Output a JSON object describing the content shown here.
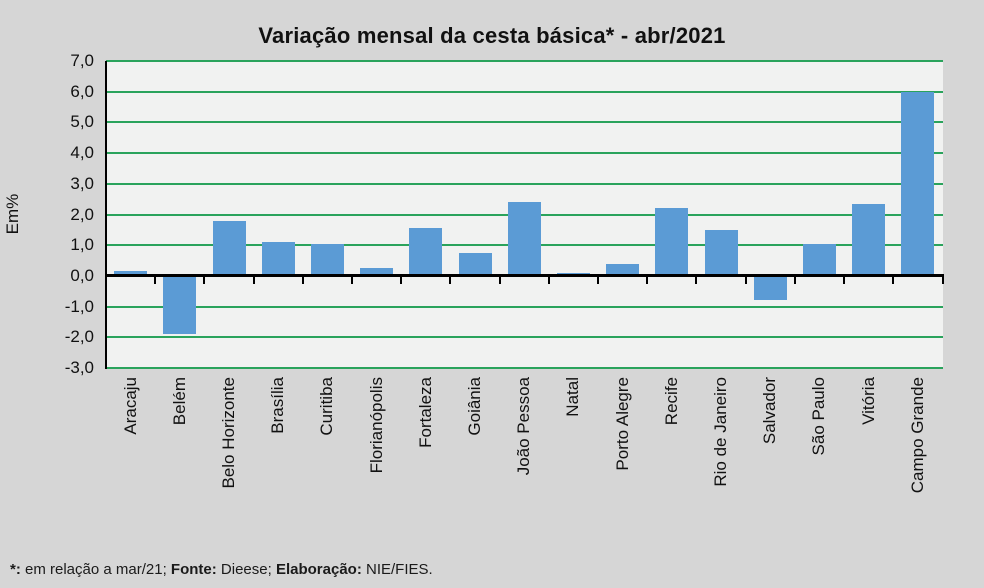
{
  "chart_data": {
    "type": "bar",
    "title": "Variação mensal da cesta básica* - abr/2021",
    "xlabel": "",
    "ylabel": "Em%",
    "ylim": [
      -3.0,
      7.0
    ],
    "grid": true,
    "gridline_step": 1.0,
    "legend": null,
    "y_tick_labels": [
      "7,0",
      "6,0",
      "5,0",
      "4,0",
      "3,0",
      "2,0",
      "1,0",
      "0,0",
      "-1,0",
      "-2,0",
      "-3,0"
    ],
    "categories": [
      "Aracaju",
      "Belém",
      "Belo Horizonte",
      "Brasília",
      "Curitiba",
      "Florianópolis",
      "Fortaleza",
      "Goiânia",
      "João Pessoa",
      "Natal",
      "Porto Alegre",
      "Recife",
      "Rio de Janeiro",
      "Salvador",
      "São Paulo",
      "Vitória",
      "Campo Grande"
    ],
    "values": [
      0.15,
      -1.9,
      1.8,
      1.1,
      1.05,
      0.25,
      1.55,
      0.75,
      2.4,
      0.1,
      0.4,
      2.2,
      1.5,
      -0.8,
      1.05,
      2.35,
      6.0
    ],
    "colors": {
      "bar": "#5b9bd5",
      "gridline": "#2aa35c",
      "axis": "#000000",
      "plot_background": "#f1f2f1",
      "page_background": "#d6d6d6",
      "text": "#111111"
    }
  },
  "footer": {
    "note_star": "*:",
    "note_text": " em relação a mar/21; ",
    "source_label": "Fonte:",
    "source_text": " Dieese; ",
    "elaboration_label": "Elaboração:",
    "elaboration_text": " NIE/FIES."
  }
}
